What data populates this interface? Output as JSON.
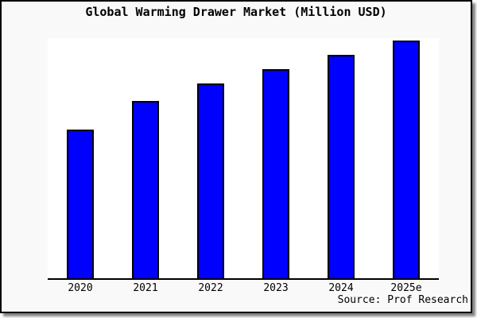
{
  "title": "Global Warming Drawer Market (Million USD)",
  "source": "Source: Prof Research",
  "colors": {
    "bar_fill": "#0000ff",
    "bar_border": "#000000",
    "frame_background": "#f9f9f9",
    "plot_background": "#ffffff",
    "axis": "#000000",
    "frame_border": "#000000",
    "shadow": "#808080"
  },
  "chart_data": {
    "type": "bar",
    "title": "Global Warming Drawer Market (Million USD)",
    "categories": [
      "2020",
      "2021",
      "2022",
      "2023",
      "2024",
      "2025e"
    ],
    "values": [
      62,
      74,
      81,
      87,
      93,
      99
    ],
    "xlabel": "",
    "ylabel": "",
    "ylim": [
      0,
      100
    ],
    "grid": false,
    "legend": false,
    "y_axis_labels_shown": false,
    "note": "No numeric y-axis shown in chart; values estimated as percent of plot height from bar pixels."
  }
}
